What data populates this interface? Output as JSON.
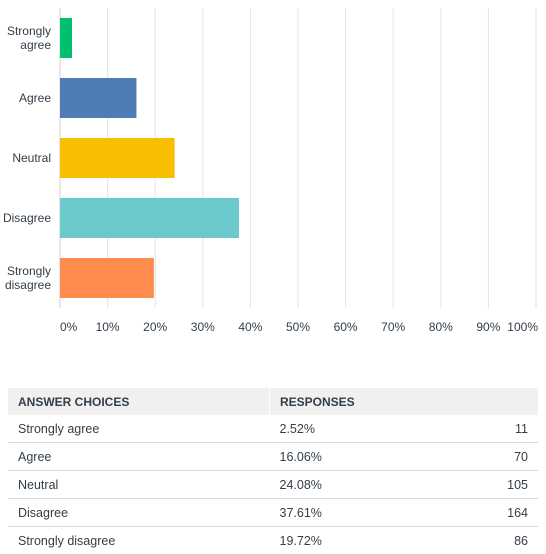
{
  "chart_data": {
    "type": "bar",
    "orientation": "horizontal",
    "categories": [
      "Strongly agree",
      "Agree",
      "Neutral",
      "Disagree",
      "Strongly disagree"
    ],
    "values": [
      2.52,
      16.06,
      24.08,
      37.61,
      19.72
    ],
    "colors": [
      "#00bf6f",
      "#507cb6",
      "#f9be00",
      "#6bc8cd",
      "#ff8b4f"
    ],
    "xlim": [
      0,
      100
    ],
    "xticks": [
      "0%",
      "10%",
      "20%",
      "30%",
      "40%",
      "50%",
      "60%",
      "70%",
      "80%",
      "90%",
      "100%"
    ],
    "grid": true
  },
  "table": {
    "headers": [
      "ANSWER CHOICES",
      "RESPONSES"
    ],
    "rows": [
      {
        "choice": "Strongly agree",
        "percent": "2.52%",
        "count": "11"
      },
      {
        "choice": "Agree",
        "percent": "16.06%",
        "count": "70"
      },
      {
        "choice": "Neutral",
        "percent": "24.08%",
        "count": "105"
      },
      {
        "choice": "Disagree",
        "percent": "37.61%",
        "count": "164"
      },
      {
        "choice": "Strongly disagree",
        "percent": "19.72%",
        "count": "86"
      }
    ]
  }
}
